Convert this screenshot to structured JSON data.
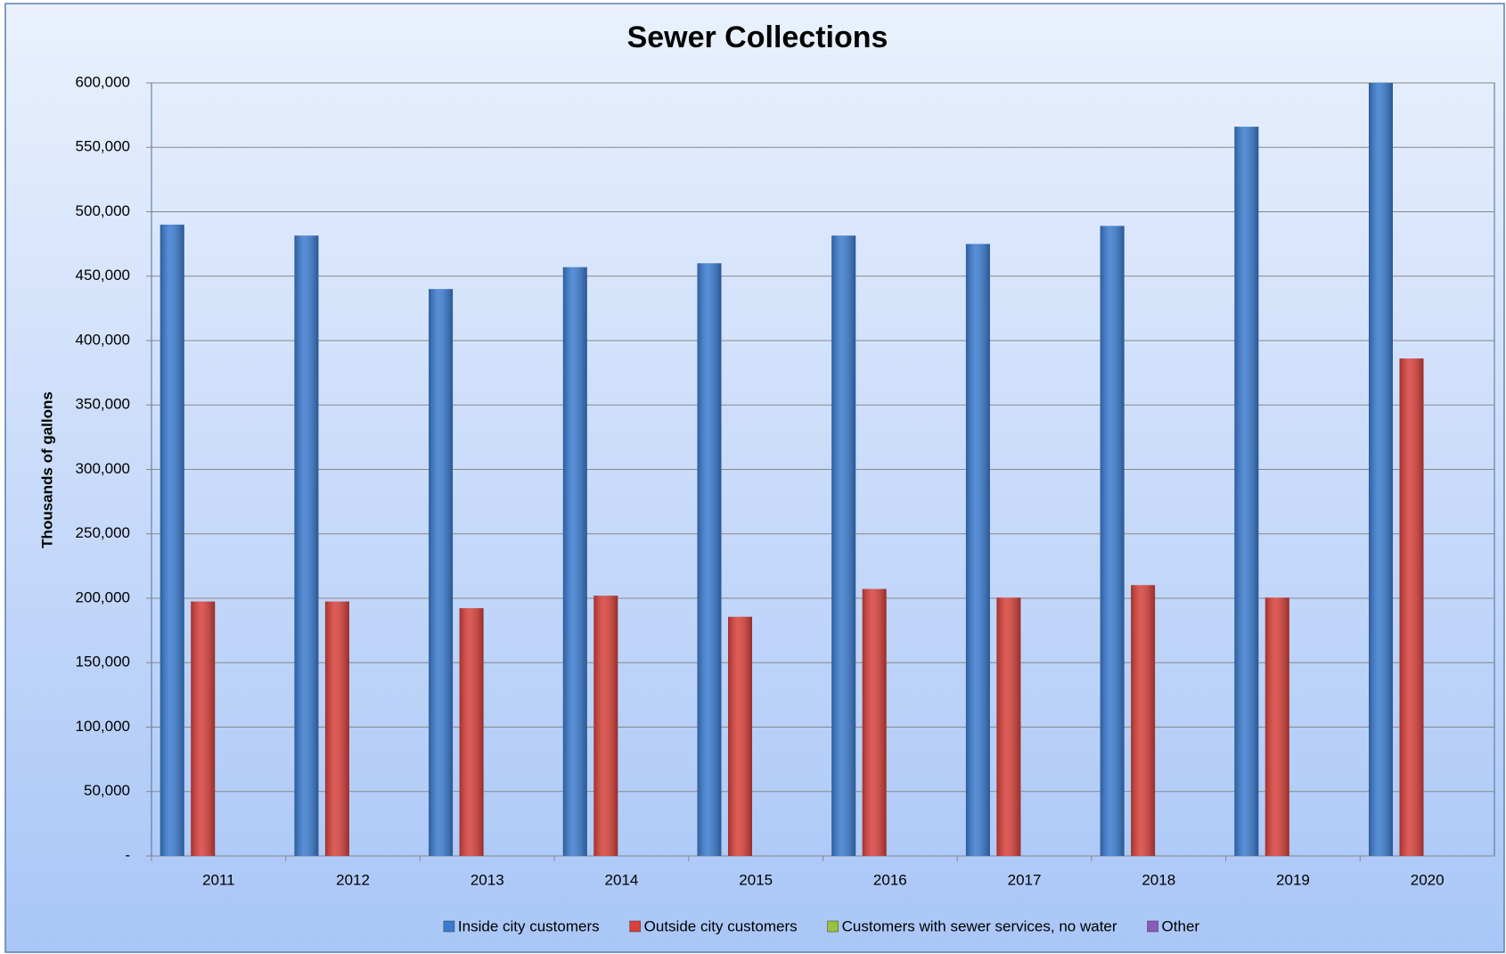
{
  "chart_data": {
    "type": "bar",
    "title": "Sewer Collections",
    "y_label": "Thousands of gallons",
    "categories": [
      "2011",
      "2012",
      "2013",
      "2014",
      "2015",
      "2016",
      "2017",
      "2018",
      "2019",
      "2020"
    ],
    "series": [
      {
        "name": "Inside city customers",
        "color": "#3a7bd0",
        "values": [
          490000,
          481500,
          440000,
          457000,
          460000,
          481500,
          475000,
          489000,
          566000,
          600000
        ]
      },
      {
        "name": "Outside city customers",
        "color": "#d8403a",
        "values": [
          197500,
          197500,
          192300,
          202000,
          185600,
          207200,
          200500,
          210200,
          200500,
          386100
        ]
      },
      {
        "name": "Customers with sewer services, no water",
        "color": "#9bc13c",
        "values": [
          0,
          0,
          0,
          0,
          0,
          0,
          0,
          0,
          0,
          0
        ]
      },
      {
        "name": "Other",
        "color": "#8a5cb8",
        "values": [
          0,
          0,
          0,
          0,
          0,
          0,
          0,
          0,
          0,
          0
        ]
      }
    ],
    "ylim": [
      0,
      600000
    ],
    "yticks": [
      {
        "value": 0,
        "label": "-"
      },
      {
        "value": 50000,
        "label": "50,000"
      },
      {
        "value": 100000,
        "label": "100,000"
      },
      {
        "value": 150000,
        "label": "150,000"
      },
      {
        "value": 200000,
        "label": "200,000"
      },
      {
        "value": 250000,
        "label": "250,000"
      },
      {
        "value": 300000,
        "label": "300,000"
      },
      {
        "value": 350000,
        "label": "350,000"
      },
      {
        "value": 400000,
        "label": "400,000"
      },
      {
        "value": 450000,
        "label": "450,000"
      },
      {
        "value": 500000,
        "label": "500,000"
      },
      {
        "value": 550000,
        "label": "550,000"
      },
      {
        "value": 600000,
        "label": "600,000"
      }
    ],
    "grid": true,
    "legend": "bottom"
  }
}
